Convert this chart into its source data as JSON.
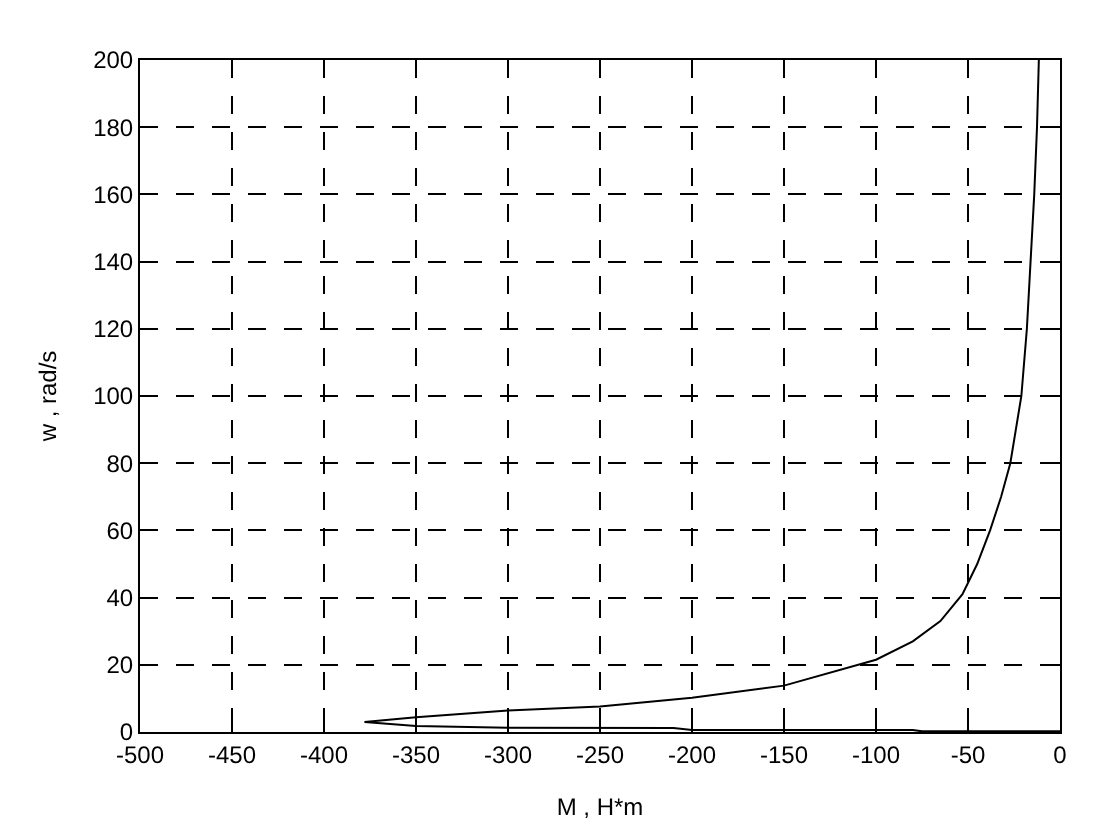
{
  "chart_data": {
    "type": "line",
    "xlabel": "M , H*m",
    "ylabel": "w , rad/s",
    "xlim": [
      -500,
      0
    ],
    "ylim": [
      0,
      200
    ],
    "xticks": [
      -500,
      -450,
      -400,
      -350,
      -300,
      -250,
      -200,
      -150,
      -100,
      -50,
      0
    ],
    "yticks": [
      0,
      20,
      40,
      60,
      80,
      100,
      120,
      140,
      160,
      180,
      200
    ],
    "grid": true,
    "legend": false,
    "marker": "none",
    "line_style": "solid",
    "series": [
      {
        "color": "#000000",
        "x": [
          0,
          -75,
          -80,
          -200,
          -210,
          -300,
          -350,
          -378,
          -350,
          -300,
          -250,
          -200,
          -150,
          -100,
          -80,
          -65,
          -53,
          -45,
          -38,
          -32,
          -27,
          -24,
          -21,
          -18,
          -16,
          -14,
          -12.5,
          -11.5
        ],
        "values": [
          0.2,
          0.2,
          0.6,
          0.6,
          1.2,
          1.3,
          1.8,
          3,
          4.4,
          6.4,
          7.6,
          10.2,
          13.8,
          21.5,
          27,
          33,
          41,
          50,
          60,
          70,
          80,
          90,
          100,
          120,
          140,
          160,
          180,
          200
        ]
      }
    ]
  }
}
